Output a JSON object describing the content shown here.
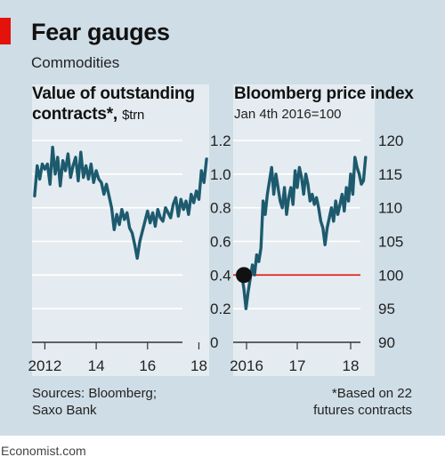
{
  "header": {
    "title": "Fear gauges",
    "subtitle": "Commodities"
  },
  "chart_data": [
    {
      "type": "line",
      "title": "Value of outstanding contracts*,",
      "unit": "$trn",
      "x_ticks": [
        "2012",
        "14",
        "16",
        "18"
      ],
      "y_ticks": [
        "1.2",
        "1.0",
        "0.8",
        "0.6",
        "0.4",
        "0.2",
        "0"
      ],
      "ylim": [
        0,
        1.2
      ],
      "xlim": [
        2011.5,
        2018.4
      ],
      "grid": true,
      "series": [
        {
          "color": "#1d5a6e",
          "x": [
            2011.6,
            2011.7,
            2011.8,
            2011.9,
            2012.0,
            2012.1,
            2012.2,
            2012.3,
            2012.4,
            2012.5,
            2012.6,
            2012.7,
            2012.8,
            2012.9,
            2013.0,
            2013.1,
            2013.2,
            2013.3,
            2013.4,
            2013.5,
            2013.6,
            2013.7,
            2013.8,
            2013.9,
            2014.0,
            2014.1,
            2014.2,
            2014.3,
            2014.4,
            2014.5,
            2014.6,
            2014.7,
            2014.8,
            2014.9,
            2015.0,
            2015.1,
            2015.2,
            2015.3,
            2015.4,
            2015.5,
            2015.6,
            2015.7,
            2015.8,
            2015.9,
            2016.0,
            2016.1,
            2016.2,
            2016.3,
            2016.4,
            2016.5,
            2016.6,
            2016.7,
            2016.8,
            2016.9,
            2017.0,
            2017.1,
            2017.2,
            2017.3,
            2017.4,
            2017.5,
            2017.6,
            2017.7,
            2017.8,
            2017.9,
            2018.0,
            2018.1,
            2018.2,
            2018.3
          ],
          "values": [
            0.87,
            1.05,
            0.97,
            1.06,
            1.03,
            1.06,
            0.94,
            1.16,
            1.0,
            1.1,
            0.93,
            1.08,
            1.02,
            1.12,
            0.98,
            1.05,
            1.1,
            0.96,
            1.13,
            0.98,
            1.05,
            0.97,
            1.06,
            0.95,
            1.02,
            0.97,
            0.95,
            0.88,
            0.94,
            0.87,
            0.8,
            0.67,
            0.76,
            0.7,
            0.79,
            0.73,
            0.77,
            0.68,
            0.65,
            0.58,
            0.5,
            0.6,
            0.66,
            0.72,
            0.78,
            0.71,
            0.77,
            0.69,
            0.79,
            0.74,
            0.72,
            0.8,
            0.77,
            0.74,
            0.82,
            0.86,
            0.75,
            0.85,
            0.79,
            0.84,
            0.76,
            0.88,
            0.83,
            0.9,
            0.85,
            1.02,
            0.95,
            1.09
          ]
        }
      ]
    },
    {
      "type": "line",
      "title": "Bloomberg price index",
      "subtitle": "Jan 4th 2016=100",
      "x_ticks": [
        "2016",
        "17",
        "18"
      ],
      "y_ticks": [
        "120",
        "115",
        "110",
        "105",
        "100",
        "95",
        "90"
      ],
      "ylim": [
        90,
        120
      ],
      "xlim": [
        2015.85,
        2018.5
      ],
      "grid": true,
      "baseline": 100,
      "series": [
        {
          "color": "#1d5a6e",
          "x": [
            2016.01,
            2016.05,
            2016.09,
            2016.13,
            2016.17,
            2016.21,
            2016.25,
            2016.29,
            2016.33,
            2016.37,
            2016.41,
            2016.45,
            2016.49,
            2016.53,
            2016.57,
            2016.61,
            2016.65,
            2016.69,
            2016.73,
            2016.77,
            2016.81,
            2016.85,
            2016.89,
            2016.93,
            2016.97,
            2017.01,
            2017.05,
            2017.09,
            2017.13,
            2017.17,
            2017.21,
            2017.25,
            2017.29,
            2017.33,
            2017.37,
            2017.41,
            2017.45,
            2017.49,
            2017.53,
            2017.57,
            2017.61,
            2017.65,
            2017.69,
            2017.73,
            2017.77,
            2017.81,
            2017.85,
            2017.89,
            2017.93,
            2017.97,
            2018.01,
            2018.05,
            2018.09,
            2018.13,
            2018.17,
            2018.21,
            2018.25,
            2018.29,
            2018.33
          ],
          "values": [
            100.0,
            98.0,
            95.0,
            97.5,
            99.5,
            101.5,
            100.0,
            103.0,
            102.0,
            104.0,
            111.0,
            109.0,
            112.0,
            114.0,
            116.0,
            112.0,
            115.0,
            113.0,
            111.0,
            110.0,
            113.0,
            109.0,
            111.5,
            113.0,
            110.5,
            115.5,
            113.0,
            116.0,
            114.5,
            112.0,
            115.0,
            113.5,
            111.0,
            112.0,
            110.5,
            111.5,
            110.0,
            108.0,
            107.0,
            104.5,
            107.0,
            108.5,
            110.0,
            108.0,
            111.0,
            109.0,
            110.5,
            112.0,
            109.5,
            113.0,
            111.0,
            115.0,
            112.0,
            117.5,
            116.0,
            115.0,
            113.5,
            114.0,
            117.5
          ]
        }
      ]
    }
  ],
  "footnotes": {
    "sources_line1": "Sources: Bloomberg;",
    "sources_line2": "Saxo Bank",
    "note_line1": "*Based on 22",
    "note_line2": "futures contracts"
  },
  "branding": "Economist.com",
  "colors": {
    "background": "#cfdde6",
    "panel": "#e4ecf1",
    "line": "#1d5a6e",
    "accent": "#e3120b",
    "marker": "#111111"
  }
}
